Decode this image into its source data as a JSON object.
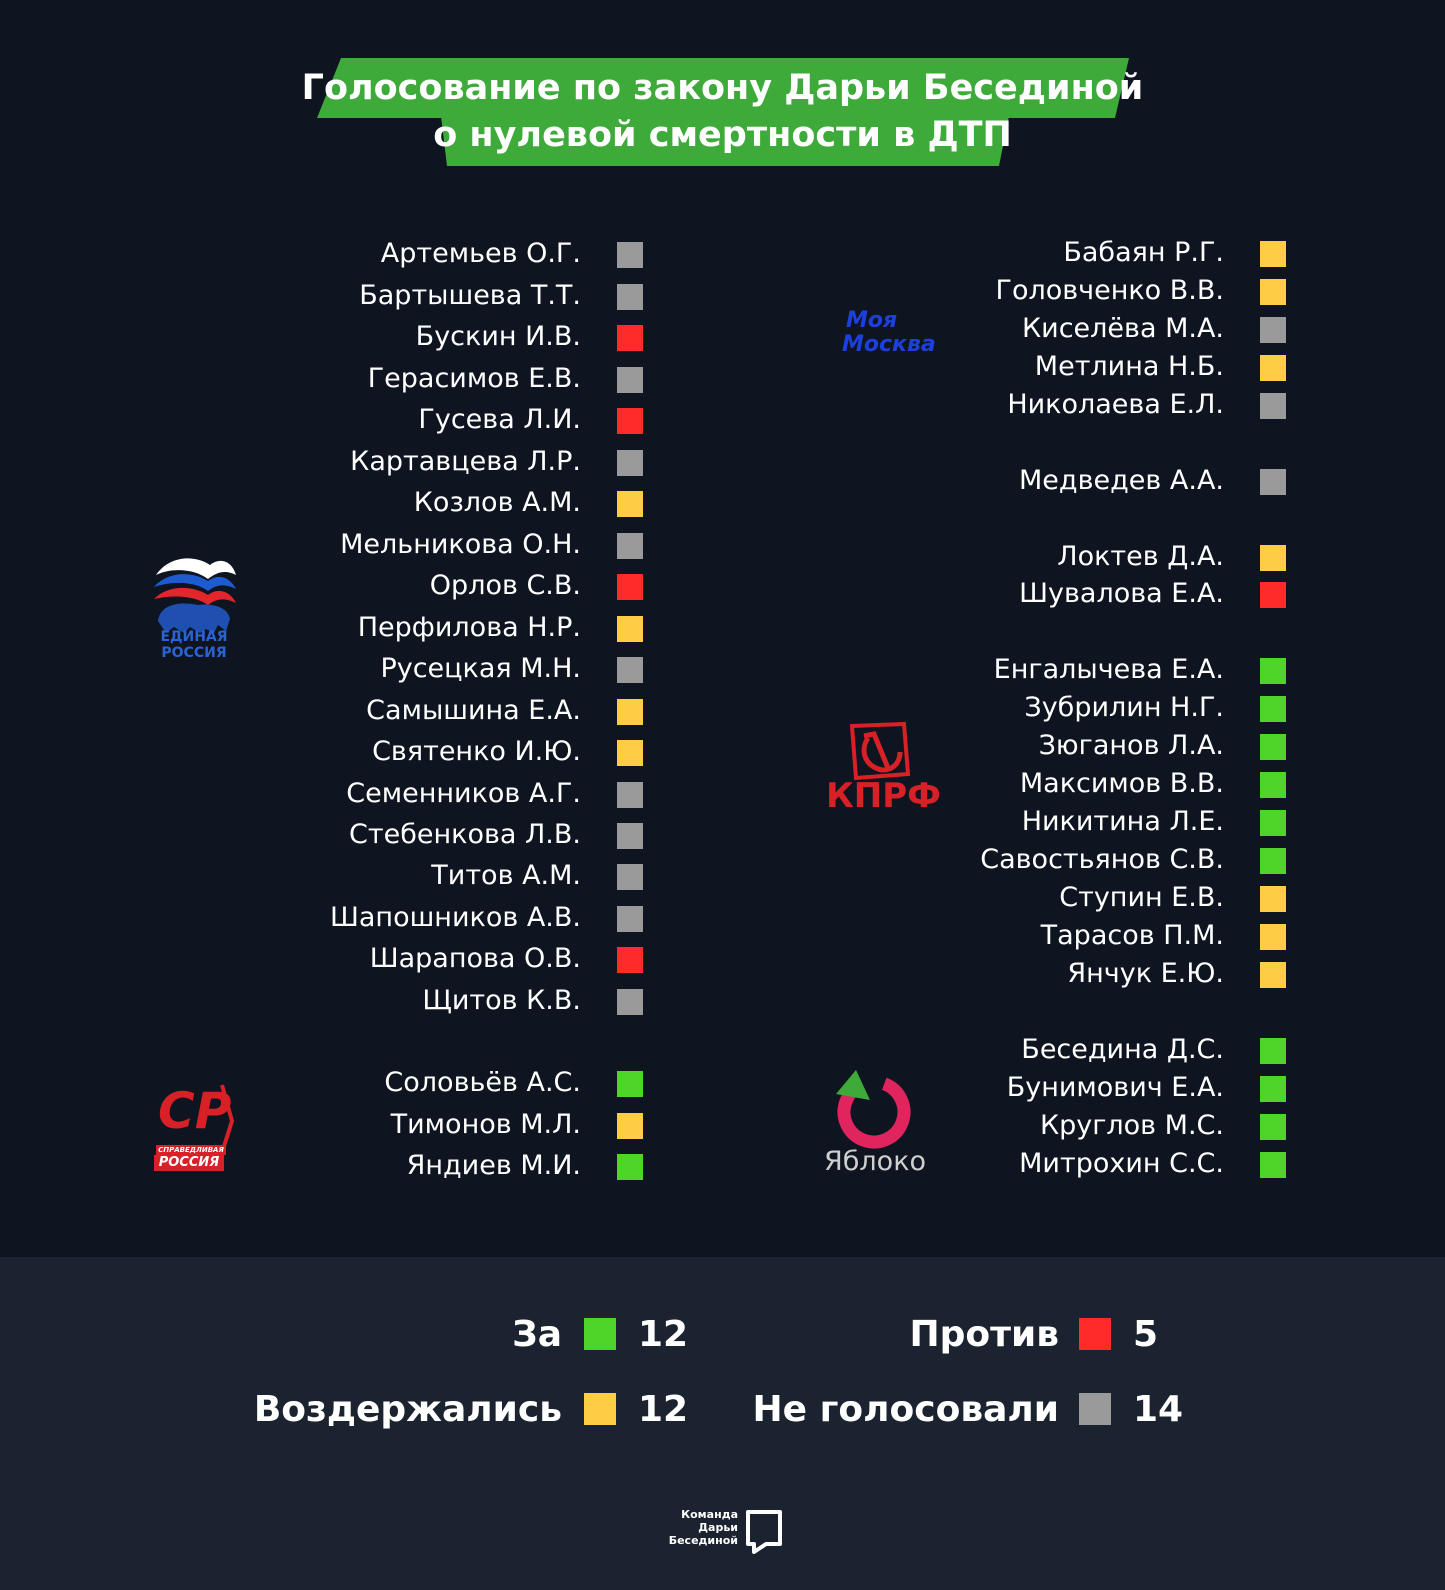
{
  "title": {
    "line1": "Голосование по закону Дарьи Бесединой",
    "line2": "о нулевой смертности в ДТП"
  },
  "colors": {
    "za": "#4fd52a",
    "protiv": "#ff2b2b",
    "vozderzhalis": "#ffcd45",
    "ne_golosovali": "#9a9a9a",
    "title_band": "#3daa3a"
  },
  "parties": {
    "edinaya_rossiya": {
      "logo_text": [
        "ЕДИНАЯ",
        "РОССИЯ"
      ],
      "members": [
        {
          "name": "Артемьев О.Г.",
          "vote": "ne"
        },
        {
          "name": "Бартышева Т.Т.",
          "vote": "ne"
        },
        {
          "name": "Бускин И.В.",
          "vote": "protiv"
        },
        {
          "name": "Герасимов Е.В.",
          "vote": "ne"
        },
        {
          "name": "Гусева Л.И.",
          "vote": "protiv"
        },
        {
          "name": "Картавцева Л.Р.",
          "vote": "ne"
        },
        {
          "name": "Козлов А.М.",
          "vote": "vozd"
        },
        {
          "name": "Мельникова О.Н.",
          "vote": "ne"
        },
        {
          "name": "Орлов С.В.",
          "vote": "protiv"
        },
        {
          "name": "Перфилова Н.Р.",
          "vote": "vozd"
        },
        {
          "name": "Русецкая М.Н.",
          "vote": "ne"
        },
        {
          "name": "Самышина Е.А.",
          "vote": "vozd"
        },
        {
          "name": "Святенко И.Ю.",
          "vote": "vozd"
        },
        {
          "name": "Семенников А.Г.",
          "vote": "ne"
        },
        {
          "name": "Стебенкова Л.В.",
          "vote": "ne"
        },
        {
          "name": "Титов А.М.",
          "vote": "ne"
        },
        {
          "name": "Шапошников А.В.",
          "vote": "ne"
        },
        {
          "name": "Шарапова О.В.",
          "vote": "protiv"
        },
        {
          "name": "Щитов К.В.",
          "vote": "ne"
        }
      ]
    },
    "spravedlivaya_rossiya": {
      "logo_text": [
        "СР",
        "СПРАВЕДЛИВАЯ",
        "РОССИЯ"
      ],
      "members": [
        {
          "name": "Соловьёв А.С.",
          "vote": "za"
        },
        {
          "name": "Тимонов М.Л.",
          "vote": "vozd"
        },
        {
          "name": "Яндиев М.И.",
          "vote": "za"
        }
      ]
    },
    "moya_moskva": {
      "logo_text": [
        "Моя",
        "Москва"
      ],
      "members": [
        {
          "name": "Бабаян Р.Г.",
          "vote": "vozd"
        },
        {
          "name": "Головченко В.В.",
          "vote": "vozd"
        },
        {
          "name": "Киселёва М.А.",
          "vote": "ne"
        },
        {
          "name": "Метлина Н.Б.",
          "vote": "vozd"
        },
        {
          "name": "Николаева Е.Л.",
          "vote": "ne"
        }
      ]
    },
    "medvedev": {
      "members": [
        {
          "name": "Медведев А.А.",
          "vote": "ne"
        }
      ]
    },
    "loktev_shuvalova": {
      "members": [
        {
          "name": "Локтев Д.А.",
          "vote": "vozd"
        },
        {
          "name": "Шувалова Е.А.",
          "vote": "protiv"
        }
      ]
    },
    "kprf": {
      "logo_text": [
        "КПРФ"
      ],
      "members": [
        {
          "name": "Енгалычева Е.А.",
          "vote": "za"
        },
        {
          "name": "Зубрилин Н.Г.",
          "vote": "za"
        },
        {
          "name": "Зюганов Л.А.",
          "vote": "za"
        },
        {
          "name": "Максимов В.В.",
          "vote": "za"
        },
        {
          "name": "Никитина Л.Е.",
          "vote": "za"
        },
        {
          "name": "Савостьянов С.В.",
          "vote": "za"
        },
        {
          "name": "Ступин Е.В.",
          "vote": "vozd"
        },
        {
          "name": "Тарасов П.М.",
          "vote": "vozd"
        },
        {
          "name": "Янчук Е.Ю.",
          "vote": "vozd"
        }
      ]
    },
    "yabloko": {
      "logo_text": [
        "Яблоко"
      ],
      "members": [
        {
          "name": "Беседина Д.С.",
          "vote": "za"
        },
        {
          "name": "Бунимович Е.А.",
          "vote": "za"
        },
        {
          "name": "Круглов М.С.",
          "vote": "za"
        },
        {
          "name": "Митрохин С.С.",
          "vote": "za"
        }
      ]
    }
  },
  "legend": {
    "za": {
      "label": "За",
      "count": "12"
    },
    "protiv": {
      "label": "Против",
      "count": "5"
    },
    "vozd": {
      "label": "Воздержались",
      "count": "12"
    },
    "ne": {
      "label": "Не голосовали",
      "count": "14"
    }
  },
  "footer": {
    "lines": [
      "Команда",
      "Дарьи",
      "Бесединой"
    ]
  }
}
